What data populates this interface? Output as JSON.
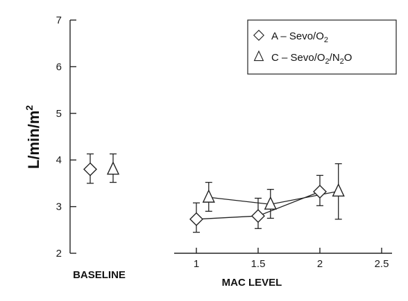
{
  "chart_data": {
    "type": "scatter",
    "ylabel": "L/min/m",
    "ylabel_sup": "2",
    "xlabel": "MAC LEVEL",
    "baseline_label": "BASELINE",
    "ylim": [
      2,
      7
    ],
    "y_ticks": [
      "2",
      "3",
      "4",
      "5",
      "6",
      "7"
    ],
    "x_ticks": [
      "1",
      "1.5",
      "2",
      "2.5"
    ],
    "series": [
      {
        "name_parts": [
          "A – Sevo/O",
          "2"
        ],
        "marker": "diamond",
        "baseline": {
          "y": 3.8,
          "err_low": 3.5,
          "err_high": 4.13
        },
        "points": [
          {
            "x": 1.0,
            "y": 2.73,
            "err_low": 2.45,
            "err_high": 3.08
          },
          {
            "x": 1.5,
            "y": 2.8,
            "err_low": 2.53,
            "err_high": 3.18
          },
          {
            "x": 2.0,
            "y": 3.32,
            "err_low": 3.02,
            "err_high": 3.67
          }
        ]
      },
      {
        "name_parts": [
          "C – Sevo/O",
          "2",
          "/N",
          "2",
          "O"
        ],
        "marker": "triangle",
        "baseline": {
          "y": 3.8,
          "err_low": 3.52,
          "err_high": 4.13
        },
        "points": [
          {
            "x": 1.1,
            "y": 3.2,
            "err_low": 2.9,
            "err_high": 3.52
          },
          {
            "x": 1.6,
            "y": 3.05,
            "err_low": 2.75,
            "err_high": 3.37
          },
          {
            "x": 2.15,
            "y": 3.33,
            "err_low": 2.73,
            "err_high": 3.92
          }
        ]
      }
    ],
    "legend_position": "top-right",
    "grid": false
  }
}
